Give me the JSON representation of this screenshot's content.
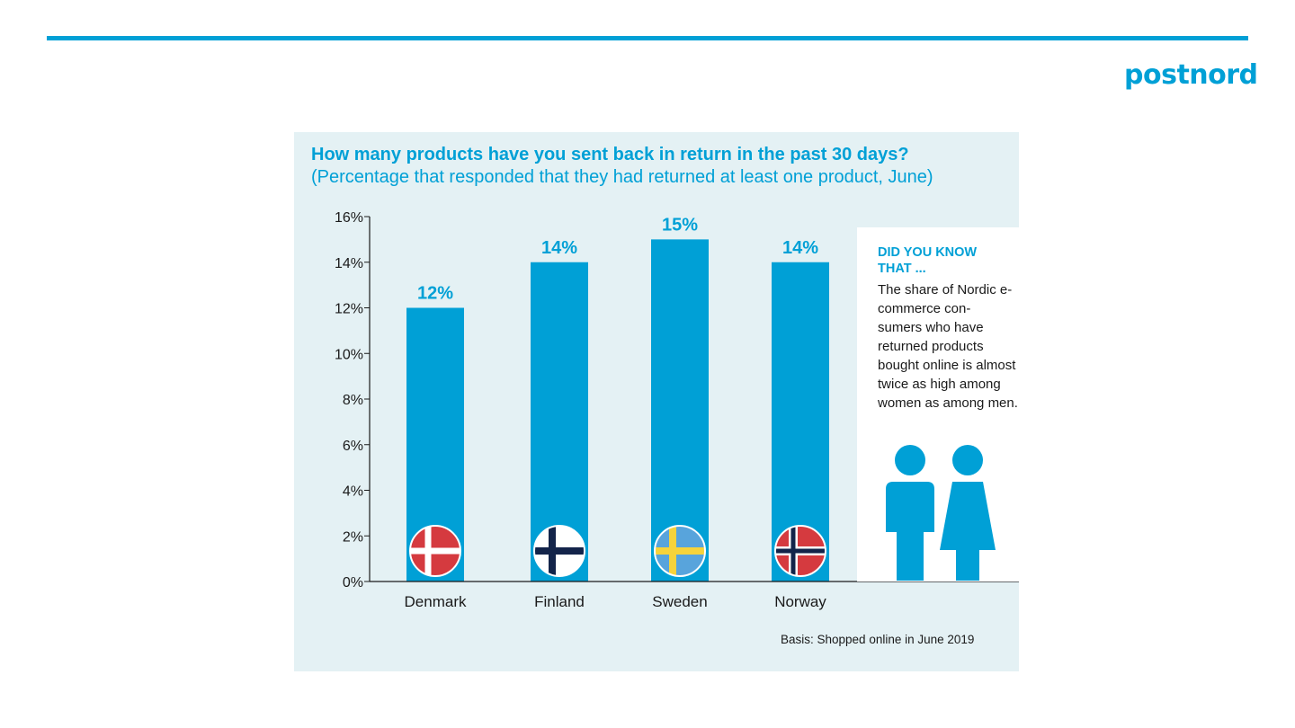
{
  "header": {
    "logo_text": "postnord",
    "brand_color": "#00a0d6"
  },
  "chart_data": {
    "type": "bar",
    "title": "How many products have you sent back in return in the past 30 days?",
    "subtitle": "(Percentage that responded that they had returned at least one product, June)",
    "categories": [
      "Denmark",
      "Finland",
      "Sweden",
      "Norway"
    ],
    "values": [
      12,
      14,
      15,
      14
    ],
    "data_labels": [
      "12%",
      "14%",
      "15%",
      "14%"
    ],
    "flags": [
      "denmark-flag-icon",
      "finland-flag-icon",
      "sweden-flag-icon",
      "norway-flag-icon"
    ],
    "y_ticks": [
      "0%",
      "2%",
      "4%",
      "6%",
      "8%",
      "10%",
      "12%",
      "14%",
      "16%"
    ],
    "ylim": [
      0,
      16
    ],
    "y_unit": "%",
    "grid": false,
    "bar_color": "#00a0d6",
    "xlabel": "",
    "ylabel": ""
  },
  "sidebar": {
    "heading": "DID YOU KNOW THAT ...",
    "text": "The share of Nordic e-commerce con- sumers who have returned products bought online is almost twice as high among women as among men.",
    "icon": "man-woman-icon"
  },
  "footer": {
    "basis": "Basis: Shopped online in June 2019"
  }
}
